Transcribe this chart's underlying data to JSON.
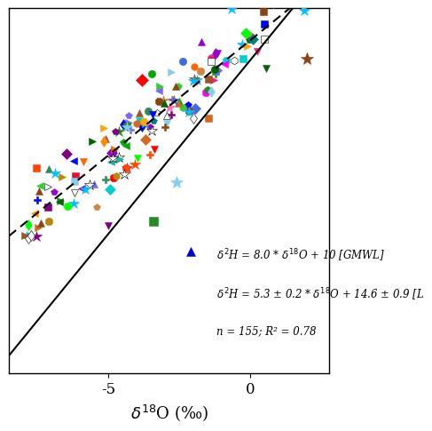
{
  "xlabel": "$\\delta^{18}$O (‰)",
  "xlim": [
    -8.5,
    2.8
  ],
  "ylim": [
    -62,
    22
  ],
  "xticks": [
    -5,
    0
  ],
  "annotation_line1": "$\\delta^2$H = 8.0 * $\\delta^{18}$O + 10 [GMWL]",
  "annotation_line2": "$\\delta^2$H = 5.3 ± 0.2 * $\\delta^{18}$O + 14.6 ± 0.9 [L",
  "annotation_line3": "n = 155; R² = 0.78",
  "gmwl_slope": 8.0,
  "gmwl_intercept": 10,
  "lmwl_slope": 5.3,
  "lmwl_intercept": 14.6,
  "seed": 42,
  "n_points": 155,
  "colors": [
    "#ff0000",
    "#ff6600",
    "#ff00ff",
    "#800080",
    "#0000ff",
    "#00aa00",
    "#00ff00",
    "#228b22",
    "#ff69b4",
    "#87ceeb",
    "#8b4513",
    "#ffa500",
    "#dc143c",
    "#4169e1",
    "#32cd32",
    "#ff1493",
    "#9400d3",
    "#ff8c00",
    "#2e8b57",
    "#b8860b",
    "#a0522d",
    "#cd853f",
    "#006400",
    "#c71585",
    "#008080",
    "#ff4500",
    "#00ced1",
    "#7b68ee",
    "#20b2aa",
    "#d2691e"
  ]
}
